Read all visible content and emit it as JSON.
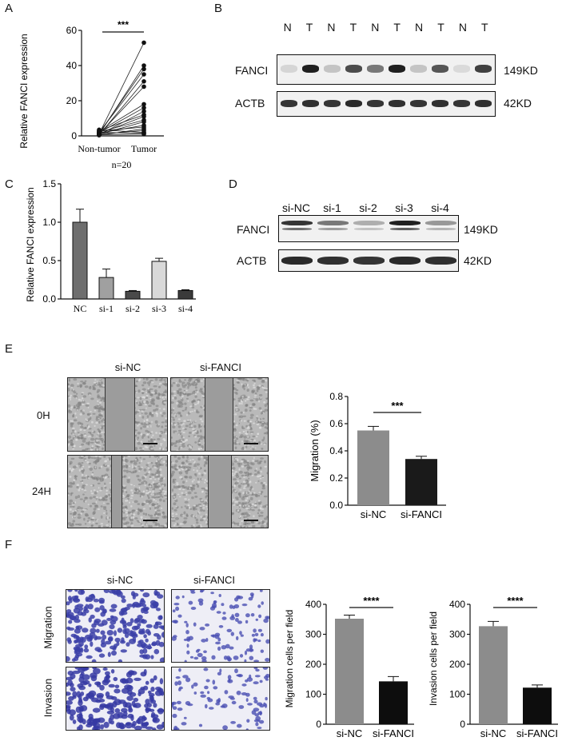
{
  "panels": {
    "A": {
      "letter": "A",
      "sig": "***",
      "n_label": "n=20",
      "chart_data": {
        "type": "scatter",
        "title": "",
        "ylabel": "Relative FANCI expression",
        "xlabel": "",
        "categories": [
          "Non-tumor",
          "Tumor"
        ],
        "ylim": [
          0,
          60
        ],
        "yticks": [
          0,
          20,
          40,
          60
        ],
        "pairs": [
          [
            1.2,
            53
          ],
          [
            0.8,
            40
          ],
          [
            1.5,
            38
          ],
          [
            2.0,
            35
          ],
          [
            0.5,
            31
          ],
          [
            1.0,
            28
          ],
          [
            2.5,
            18
          ],
          [
            1.8,
            16
          ],
          [
            0.6,
            14
          ],
          [
            3.0,
            12
          ],
          [
            1.3,
            11
          ],
          [
            2.2,
            9
          ],
          [
            0.9,
            8
          ],
          [
            1.6,
            6
          ],
          [
            2.8,
            5
          ],
          [
            0.4,
            4
          ],
          [
            1.1,
            3
          ],
          [
            3.5,
            2
          ],
          [
            2.0,
            1.5
          ],
          [
            0.7,
            1
          ]
        ]
      }
    },
    "B": {
      "letter": "B",
      "lane_labels": [
        "N",
        "T",
        "N",
        "T",
        "N",
        "T",
        "N",
        "T",
        "N",
        "T"
      ],
      "row1_label": "FANCI",
      "row1_size": "149KD",
      "row2_label": "ACTB",
      "row2_size": "42KD"
    },
    "C": {
      "letter": "C",
      "chart_data": {
        "type": "bar",
        "title": "",
        "ylabel": "Relative FANCI expression",
        "xlabel": "",
        "categories": [
          "NC",
          "si-1",
          "si-2",
          "si-3",
          "si-4"
        ],
        "values": [
          1.0,
          0.28,
          0.1,
          0.49,
          0.11
        ],
        "errors": [
          0.17,
          0.11,
          0.01,
          0.04,
          0.01
        ],
        "colors": [
          "#6e6e6e",
          "#a0a0a0",
          "#4a4a4a",
          "#d9d9d9",
          "#3a3a3a"
        ],
        "ylim": [
          0,
          1.5
        ],
        "yticks": [
          0.0,
          0.5,
          1.0,
          1.5
        ],
        "ytick_labels": [
          "0.0",
          "0.5",
          "1.0",
          "1.5"
        ]
      }
    },
    "D": {
      "letter": "D",
      "lane_labels": [
        "si-NC",
        "si-1",
        "si-2",
        "si-3",
        "si-4"
      ],
      "row1_label": "FANCI",
      "row1_size": "149KD",
      "row2_label": "ACTB",
      "row2_size": "42KD"
    },
    "E": {
      "letter": "E",
      "col_labels": [
        "si-NC",
        "si-FANCI"
      ],
      "row_labels": [
        "0H",
        "24H"
      ],
      "chart_data": {
        "type": "bar",
        "title": "",
        "ylabel": "Migration (%)",
        "xlabel": "",
        "categories": [
          "si-NC",
          "si-FANCI"
        ],
        "values": [
          0.55,
          0.34
        ],
        "errors": [
          0.03,
          0.02
        ],
        "colors": [
          "#8c8c8c",
          "#1a1a1a"
        ],
        "ylim": [
          0,
          0.8
        ],
        "yticks": [
          0.0,
          0.2,
          0.4,
          0.6,
          0.8
        ],
        "ytick_labels": [
          "0.0",
          "0.2",
          "0.4",
          "0.6",
          "0.8"
        ],
        "sig": "***"
      }
    },
    "F": {
      "letter": "F",
      "col_labels": [
        "si-NC",
        "si-FANCI"
      ],
      "row_labels": [
        "Migration",
        "Invasion"
      ],
      "chart_data": [
        {
          "type": "bar",
          "title": "",
          "ylabel": "Migration cells per field",
          "xlabel": "",
          "categories": [
            "si-NC",
            "si-FANCI"
          ],
          "values": [
            352,
            143
          ],
          "errors": [
            12,
            16
          ],
          "colors": [
            "#8c8c8c",
            "#0d0d0d"
          ],
          "ylim": [
            0,
            400
          ],
          "yticks": [
            0,
            100,
            200,
            300,
            400
          ],
          "sig": "****"
        },
        {
          "type": "bar",
          "title": "",
          "ylabel": "Invasion cells per field",
          "xlabel": "",
          "categories": [
            "si-NC",
            "si-FANCI"
          ],
          "values": [
            327,
            122
          ],
          "errors": [
            16,
            9
          ],
          "colors": [
            "#8c8c8c",
            "#0d0d0d"
          ],
          "ylim": [
            0,
            400
          ],
          "yticks": [
            0,
            100,
            200,
            300,
            400
          ],
          "sig": "****"
        }
      ]
    }
  }
}
